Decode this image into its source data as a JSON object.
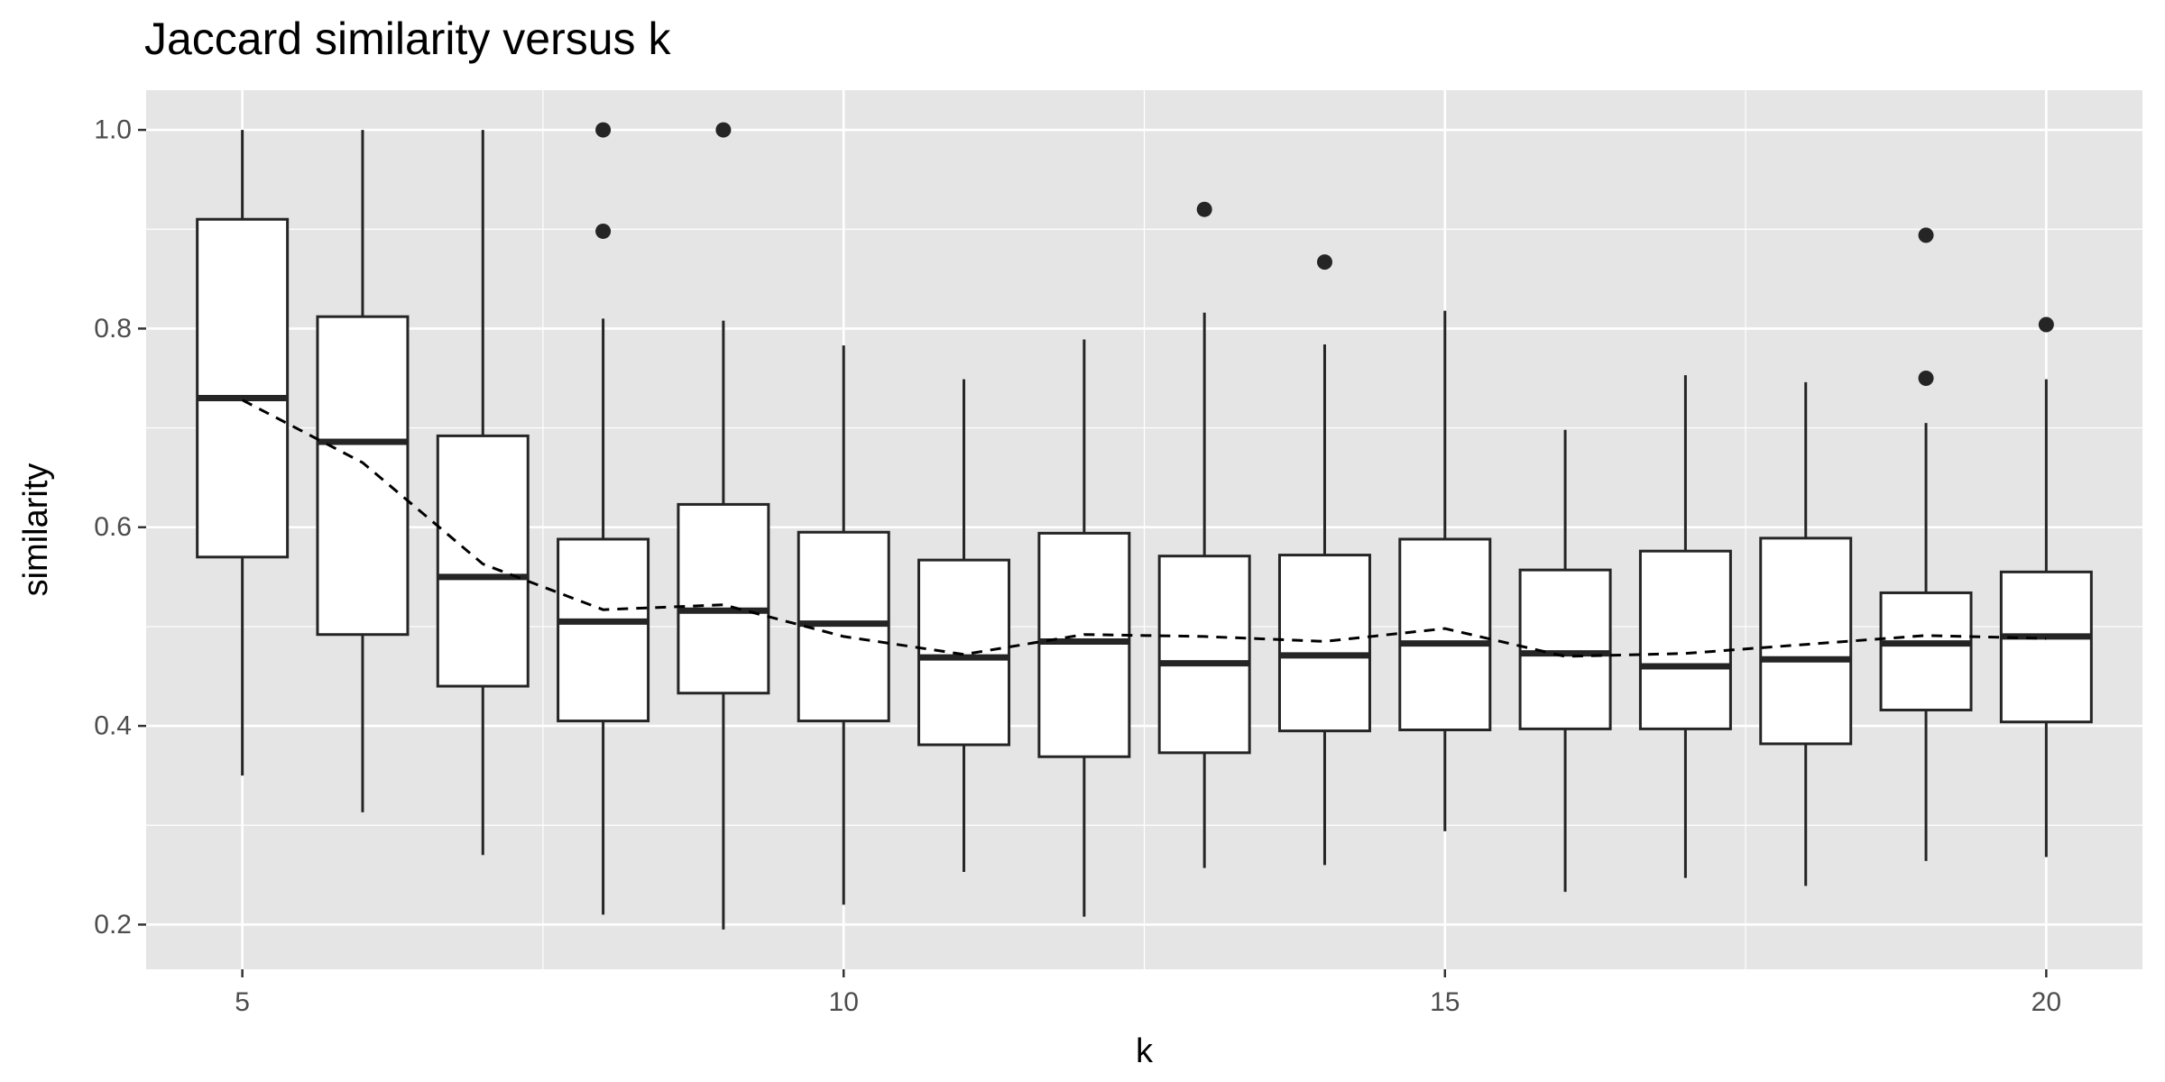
{
  "chart_data": {
    "type": "boxplot",
    "title": "Jaccard similarity versus k",
    "xlabel": "k",
    "ylabel": "similarity",
    "xlim": [
      4.2,
      20.8
    ],
    "ylim": [
      0.155,
      1.04
    ],
    "x_ticks": [
      5,
      10,
      15,
      20
    ],
    "y_ticks": [
      0.2,
      0.4,
      0.6,
      0.8,
      1.0
    ],
    "y_tick_labels": [
      "0.2",
      "0.4",
      "0.6",
      "0.8",
      "1.0"
    ],
    "grid": true,
    "boxes": [
      {
        "k": 5,
        "lower_whisker": 0.35,
        "q1": 0.57,
        "median": 0.73,
        "q3": 0.91,
        "upper_whisker": 1.0,
        "outliers": []
      },
      {
        "k": 6,
        "lower_whisker": 0.313,
        "q1": 0.492,
        "median": 0.686,
        "q3": 0.812,
        "upper_whisker": 1.0,
        "outliers": []
      },
      {
        "k": 7,
        "lower_whisker": 0.27,
        "q1": 0.44,
        "median": 0.55,
        "q3": 0.692,
        "upper_whisker": 1.0,
        "outliers": []
      },
      {
        "k": 8,
        "lower_whisker": 0.21,
        "q1": 0.405,
        "median": 0.505,
        "q3": 0.588,
        "upper_whisker": 0.81,
        "outliers": [
          0.898,
          1.0
        ]
      },
      {
        "k": 9,
        "lower_whisker": 0.195,
        "q1": 0.433,
        "median": 0.516,
        "q3": 0.623,
        "upper_whisker": 0.808,
        "outliers": [
          1.0
        ]
      },
      {
        "k": 10,
        "lower_whisker": 0.22,
        "q1": 0.405,
        "median": 0.503,
        "q3": 0.595,
        "upper_whisker": 0.783,
        "outliers": []
      },
      {
        "k": 11,
        "lower_whisker": 0.253,
        "q1": 0.381,
        "median": 0.469,
        "q3": 0.567,
        "upper_whisker": 0.749,
        "outliers": []
      },
      {
        "k": 12,
        "lower_whisker": 0.208,
        "q1": 0.369,
        "median": 0.485,
        "q3": 0.594,
        "upper_whisker": 0.789,
        "outliers": []
      },
      {
        "k": 13,
        "lower_whisker": 0.257,
        "q1": 0.373,
        "median": 0.463,
        "q3": 0.571,
        "upper_whisker": 0.816,
        "outliers": [
          0.92
        ]
      },
      {
        "k": 14,
        "lower_whisker": 0.26,
        "q1": 0.395,
        "median": 0.471,
        "q3": 0.572,
        "upper_whisker": 0.784,
        "outliers": [
          0.867
        ]
      },
      {
        "k": 15,
        "lower_whisker": 0.294,
        "q1": 0.396,
        "median": 0.483,
        "q3": 0.588,
        "upper_whisker": 0.818,
        "outliers": []
      },
      {
        "k": 16,
        "lower_whisker": 0.233,
        "q1": 0.397,
        "median": 0.473,
        "q3": 0.557,
        "upper_whisker": 0.698,
        "outliers": []
      },
      {
        "k": 17,
        "lower_whisker": 0.247,
        "q1": 0.397,
        "median": 0.46,
        "q3": 0.576,
        "upper_whisker": 0.753,
        "outliers": []
      },
      {
        "k": 18,
        "lower_whisker": 0.239,
        "q1": 0.382,
        "median": 0.467,
        "q3": 0.589,
        "upper_whisker": 0.746,
        "outliers": []
      },
      {
        "k": 19,
        "lower_whisker": 0.264,
        "q1": 0.416,
        "median": 0.483,
        "q3": 0.534,
        "upper_whisker": 0.705,
        "outliers": [
          0.75,
          0.894
        ]
      },
      {
        "k": 20,
        "lower_whisker": 0.268,
        "q1": 0.404,
        "median": 0.49,
        "q3": 0.555,
        "upper_whisker": 0.749,
        "outliers": [
          0.804
        ]
      }
    ],
    "trend_line": {
      "style": "dashed",
      "x": [
        5,
        6,
        7,
        8,
        9,
        10,
        11,
        12,
        13,
        14,
        15,
        16,
        17,
        18,
        19,
        20
      ],
      "y": [
        0.728,
        0.665,
        0.563,
        0.517,
        0.522,
        0.49,
        0.472,
        0.492,
        0.49,
        0.485,
        0.498,
        0.47,
        0.473,
        0.482,
        0.491,
        0.488
      ]
    },
    "colors": {
      "panel_background": "#E5E5E5",
      "gridline": "#FFFFFF",
      "box_fill": "#FFFFFF",
      "box_stroke": "#252525",
      "outlier": "#252525",
      "tick_label": "#4D4D4D",
      "tick_mark": "#333333",
      "text": "#000000"
    }
  }
}
